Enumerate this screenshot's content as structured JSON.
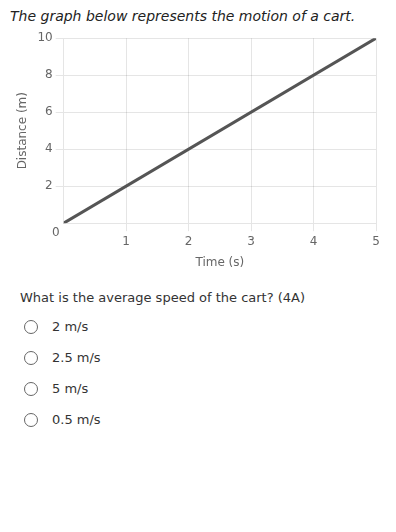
{
  "chart_data": {
    "type": "line",
    "title": "The graph below represents the motion of a cart.",
    "xlabel": "Time (s)",
    "ylabel": "Distance (m)",
    "x": [
      0,
      5
    ],
    "values": [
      0,
      10
    ],
    "color": "#555555",
    "xlim": [
      0,
      5
    ],
    "ylim": [
      0,
      10
    ],
    "xticks": [
      1,
      2,
      3,
      4,
      5
    ],
    "yticks": [
      2,
      4,
      6,
      8,
      10
    ],
    "grid": true,
    "legend": false,
    "annotations": [
      "0",
      "What is the average speed of the cart? (4A)",
      "2 m/s",
      "2.5 m/s",
      "5 m/s",
      "0.5 m/s"
    ]
  }
}
